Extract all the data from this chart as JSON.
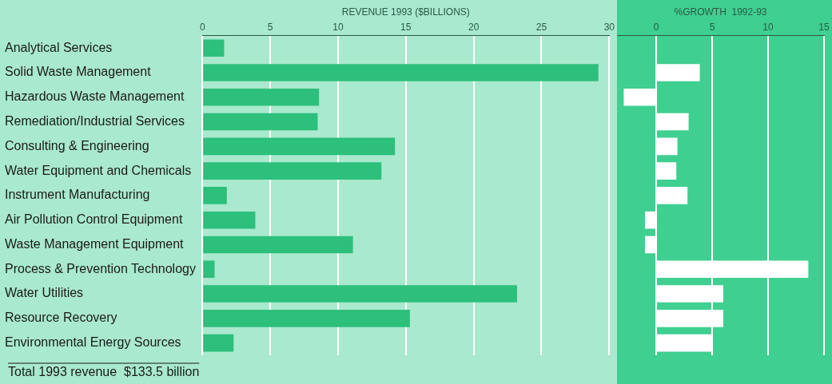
{
  "chart_data": [
    {
      "type": "bar",
      "orientation": "horizontal",
      "xlabel": "REVENUE 1993 ($BILLIONS)",
      "categories": [
        "Analytical Services",
        "Solid Waste Management",
        "Hazardous Waste Management",
        "Remediation/Industrial Services",
        "Consulting & Engineering",
        "Water Equipment and Chemicals",
        "Instrument Manufacturing",
        "Air Pollution Control Equipment",
        "Waste Management Equipment",
        "Process & Prevention Technology",
        "Water Utilities",
        "Resource Recovery",
        "Environmental Energy Sources"
      ],
      "values": [
        1.6,
        29.2,
        8.6,
        8.5,
        14.2,
        13.2,
        1.8,
        3.9,
        11.1,
        0.9,
        23.2,
        15.3,
        2.3
      ],
      "color": "#2dbf7c",
      "xlim": [
        0,
        30
      ],
      "xticks": [
        0,
        5,
        10,
        15,
        20,
        25,
        30
      ],
      "grid": "x",
      "annotations": [
        "Total 1993 revenue  $133.5 billion"
      ]
    },
    {
      "type": "bar",
      "orientation": "horizontal",
      "xlabel": "%GROWTH  1992-93",
      "categories": [
        null,
        null,
        null,
        null,
        null,
        null,
        null,
        null,
        null,
        null,
        null,
        null,
        null
      ],
      "values": [
        null,
        3.9,
        -2.9,
        2.9,
        1.9,
        1.8,
        2.8,
        -1.0,
        -1.0,
        13.6,
        6.0,
        6.0,
        5.0
      ],
      "color": "#ffffff",
      "xlim": [
        -3.5,
        15
      ],
      "xticks": [
        0,
        5,
        10,
        15
      ],
      "grid": "x",
      "tick_labels": "x"
    }
  ]
}
